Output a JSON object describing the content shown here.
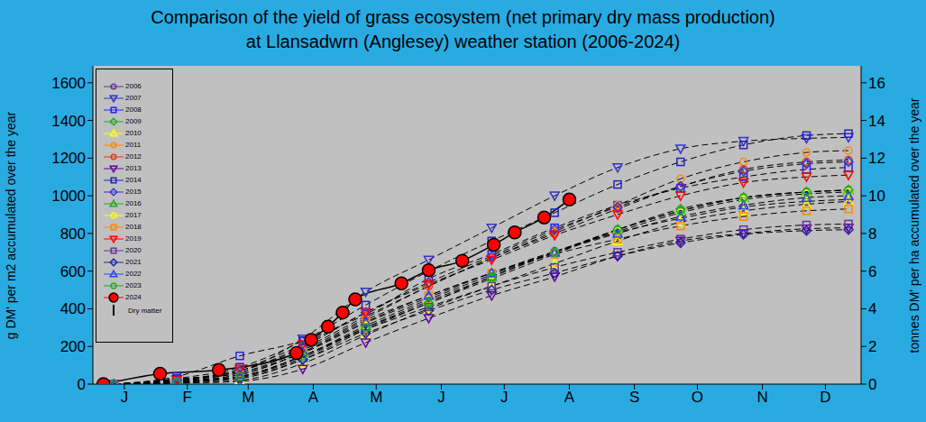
{
  "chart_data": {
    "type": "line",
    "title": "Comparison of the yield of grass ecosystem (net primary dry mass production)",
    "subtitle": "at Llansadwrn (Anglesey) weather station (2006-2024)",
    "y_label": "g DM' per m2 accumulated over the year",
    "y2_label": "tonnes DM' per ha accumulated over the year",
    "annotations": [
      "Dry matter"
    ],
    "legend": "upper left",
    "grid": false,
    "xlim": [
      0,
      366
    ],
    "xticks": [
      {
        "value": 15,
        "label": "J"
      },
      {
        "value": 45,
        "label": "F"
      },
      {
        "value": 74,
        "label": "M"
      },
      {
        "value": 105,
        "label": "A"
      },
      {
        "value": 135,
        "label": "M"
      },
      {
        "value": 166,
        "label": "J"
      },
      {
        "value": 196,
        "label": "J"
      },
      {
        "value": 227,
        "label": "A"
      },
      {
        "value": 258,
        "label": "S"
      },
      {
        "value": 288,
        "label": "O"
      },
      {
        "value": 319,
        "label": "N"
      },
      {
        "value": 349,
        "label": "D"
      }
    ],
    "ylim": [
      0,
      1690
    ],
    "yticks": [
      0,
      200,
      400,
      600,
      800,
      1000,
      1200,
      1400,
      1600
    ],
    "y2lim": [
      0,
      16.9
    ],
    "y2ticks": [
      0,
      2,
      4,
      6,
      8,
      10,
      12,
      14,
      16
    ],
    "series": [
      {
        "name": "2006",
        "color": "#663399",
        "marker": "circle",
        "line_style": "dashed",
        "x": [
          10,
          40,
          70,
          100,
          130,
          160,
          190,
          220,
          250,
          280,
          310,
          340,
          360
        ],
        "values": [
          0,
          20,
          60,
          165,
          325,
          460,
          590,
          705,
          805,
          880,
          940,
          970,
          980
        ]
      },
      {
        "name": "2007",
        "color": "#3333cc",
        "marker": "triangle-down",
        "line_style": "dashed",
        "x": [
          10,
          40,
          70,
          100,
          130,
          160,
          190,
          220,
          250,
          280,
          310,
          340,
          360
        ],
        "values": [
          0,
          25,
          70,
          240,
          490,
          660,
          830,
          1000,
          1150,
          1250,
          1290,
          1305,
          1310
        ]
      },
      {
        "name": "2008",
        "color": "#2222ee",
        "marker": "square",
        "line_style": "dashed",
        "x": [
          10,
          40,
          70,
          100,
          130,
          160,
          190,
          220,
          250,
          280,
          310,
          340,
          360
        ],
        "values": [
          0,
          40,
          150,
          230,
          370,
          560,
          690,
          830,
          950,
          1040,
          1100,
          1140,
          1150
        ]
      },
      {
        "name": "2009",
        "color": "#22aa22",
        "marker": "diamond",
        "line_style": "dashed",
        "x": [
          10,
          40,
          70,
          100,
          130,
          160,
          190,
          220,
          250,
          280,
          310,
          340,
          360
        ],
        "values": [
          0,
          10,
          30,
          130,
          290,
          430,
          560,
          690,
          820,
          930,
          990,
          1020,
          1030
        ]
      },
      {
        "name": "2010",
        "color": "#ffff00",
        "marker": "triangle",
        "line_style": "dashed",
        "x": [
          10,
          40,
          70,
          100,
          130,
          160,
          190,
          220,
          250,
          280,
          310,
          340,
          360
        ],
        "values": [
          0,
          5,
          20,
          110,
          260,
          400,
          520,
          640,
          760,
          860,
          920,
          955,
          970
        ]
      },
      {
        "name": "2011",
        "color": "#ff8800",
        "marker": "circle",
        "line_style": "dashed",
        "x": [
          10,
          40,
          70,
          100,
          130,
          160,
          190,
          220,
          250,
          280,
          310,
          340,
          360
        ],
        "values": [
          0,
          20,
          60,
          180,
          350,
          520,
          670,
          810,
          950,
          1090,
          1180,
          1230,
          1240
        ]
      },
      {
        "name": "2012",
        "color": "#ee3311",
        "marker": "circle",
        "line_style": "dashed",
        "x": [
          10,
          40,
          70,
          100,
          130,
          160,
          190,
          220,
          250,
          280,
          310,
          340,
          360
        ],
        "values": [
          0,
          25,
          70,
          190,
          360,
          520,
          670,
          800,
          930,
          1050,
          1140,
          1180,
          1190
        ]
      },
      {
        "name": "2013",
        "color": "#660099",
        "marker": "triangle-down",
        "line_style": "dashed",
        "x": [
          10,
          40,
          70,
          100,
          130,
          160,
          190,
          220,
          250,
          280,
          310,
          340,
          360
        ],
        "values": [
          0,
          5,
          15,
          80,
          220,
          350,
          470,
          570,
          680,
          760,
          800,
          825,
          830
        ]
      },
      {
        "name": "2014",
        "color": "#2222bb",
        "marker": "square",
        "line_style": "dashed",
        "x": [
          10,
          40,
          70,
          100,
          130,
          160,
          190,
          220,
          250,
          280,
          310,
          340,
          360
        ],
        "values": [
          0,
          30,
          90,
          230,
          420,
          600,
          760,
          910,
          1060,
          1180,
          1270,
          1320,
          1330
        ]
      },
      {
        "name": "2015",
        "color": "#3333dd",
        "marker": "diamond",
        "line_style": "dashed",
        "x": [
          10,
          40,
          70,
          100,
          130,
          160,
          190,
          220,
          250,
          280,
          310,
          340,
          360
        ],
        "values": [
          0,
          20,
          70,
          200,
          380,
          540,
          680,
          820,
          940,
          1050,
          1130,
          1170,
          1180
        ]
      },
      {
        "name": "2016",
        "color": "#22aa22",
        "marker": "triangle",
        "line_style": "dashed",
        "x": [
          10,
          40,
          70,
          100,
          130,
          160,
          190,
          220,
          250,
          280,
          310,
          340,
          360
        ],
        "values": [
          0,
          10,
          40,
          140,
          300,
          440,
          570,
          700,
          820,
          920,
          990,
          1020,
          1030
        ]
      },
      {
        "name": "2017",
        "color": "#ffff00",
        "marker": "circle",
        "line_style": "dashed",
        "x": [
          10,
          40,
          70,
          100,
          130,
          160,
          190,
          220,
          250,
          280,
          310,
          340,
          360
        ],
        "values": [
          0,
          10,
          40,
          150,
          310,
          450,
          580,
          700,
          810,
          910,
          980,
          1010,
          1020
        ]
      },
      {
        "name": "2018",
        "color": "#ff8800",
        "marker": "square",
        "line_style": "dashed",
        "x": [
          10,
          40,
          70,
          100,
          130,
          160,
          190,
          220,
          250,
          280,
          310,
          340,
          360
        ],
        "values": [
          0,
          15,
          50,
          170,
          340,
          470,
          590,
          690,
          770,
          840,
          890,
          920,
          930
        ]
      },
      {
        "name": "2019",
        "color": "#ff0000",
        "marker": "triangle-down",
        "line_style": "dashed",
        "x": [
          10,
          40,
          70,
          100,
          130,
          160,
          190,
          220,
          250,
          280,
          310,
          340,
          360
        ],
        "values": [
          0,
          20,
          80,
          210,
          380,
          530,
          660,
          790,
          900,
          1000,
          1070,
          1100,
          1110
        ]
      },
      {
        "name": "2020",
        "color": "#663399",
        "marker": "square",
        "line_style": "dashed",
        "x": [
          10,
          40,
          70,
          100,
          130,
          160,
          190,
          220,
          250,
          280,
          310,
          340,
          360
        ],
        "values": [
          0,
          10,
          40,
          150,
          290,
          410,
          520,
          620,
          700,
          770,
          820,
          845,
          850
        ]
      },
      {
        "name": "2021",
        "color": "#2222aa",
        "marker": "diamond",
        "line_style": "dashed",
        "x": [
          10,
          40,
          70,
          100,
          130,
          160,
          190,
          220,
          250,
          280,
          310,
          340,
          360
        ],
        "values": [
          0,
          10,
          35,
          130,
          270,
          390,
          500,
          590,
          680,
          750,
          795,
          815,
          820
        ]
      },
      {
        "name": "2022",
        "color": "#2244ff",
        "marker": "triangle",
        "line_style": "dashed",
        "x": [
          10,
          40,
          70,
          100,
          130,
          160,
          190,
          220,
          250,
          280,
          310,
          340,
          360
        ],
        "values": [
          0,
          15,
          50,
          170,
          330,
          470,
          590,
          700,
          800,
          890,
          950,
          990,
          1000
        ]
      },
      {
        "name": "2023",
        "color": "#22aa22",
        "marker": "hexagon",
        "line_style": "dashed",
        "x": [
          10,
          40,
          70,
          100,
          130,
          160,
          190,
          220,
          250,
          280,
          310,
          340,
          360
        ],
        "values": [
          0,
          10,
          40,
          150,
          300,
          430,
          570,
          700,
          820,
          920,
          990,
          1020,
          1030
        ]
      },
      {
        "name": "2024",
        "color": "#ff0000",
        "marker": "filled-circle",
        "line_style": "solid",
        "x": [
          5,
          32,
          60,
          97,
          104,
          112,
          119,
          125,
          147,
          160,
          176,
          191,
          201,
          215,
          227
        ],
        "values": [
          0,
          55,
          75,
          165,
          235,
          305,
          380,
          450,
          535,
          605,
          655,
          740,
          805,
          885,
          980
        ]
      }
    ]
  }
}
